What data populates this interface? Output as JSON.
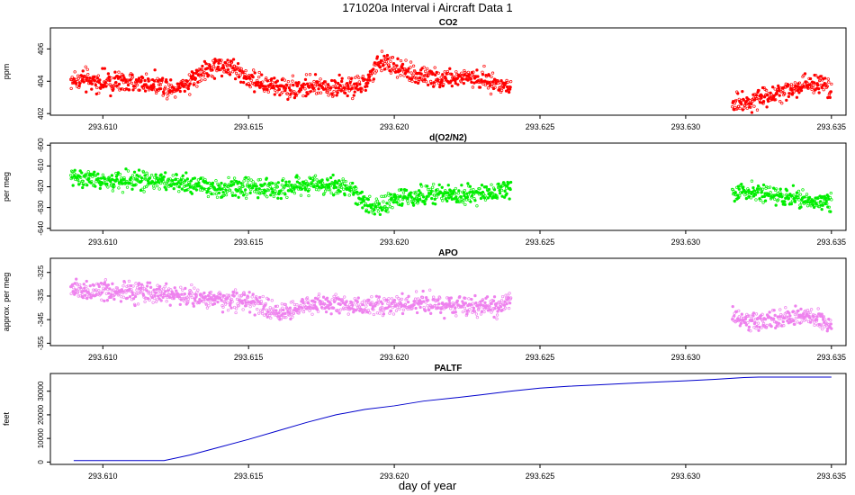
{
  "figure": {
    "title": "171020a   Interval i Aircraft Data 1",
    "xlabel": "day of year"
  },
  "chart_data": [
    {
      "type": "scatter",
      "title": "CO2",
      "ylabel": "ppm",
      "color": "#ff0000",
      "xlim": [
        293.6082,
        293.6355
      ],
      "ylim": [
        401.9,
        407.3
      ],
      "xticks": [
        293.61,
        293.615,
        293.62,
        293.625,
        293.63,
        293.635
      ],
      "xtick_labels": [
        "293.610",
        "293.615",
        "293.620",
        "293.625",
        "293.630",
        "293.635"
      ],
      "yticks": [
        402,
        404,
        406
      ],
      "ytick_labels": [
        "402",
        "404",
        "406"
      ],
      "trend": [
        [
          293.609,
          404.1
        ],
        [
          293.61,
          403.9
        ],
        [
          293.611,
          403.9
        ],
        [
          293.612,
          403.8
        ],
        [
          293.6125,
          403.6
        ],
        [
          293.613,
          404.0
        ],
        [
          293.6135,
          404.6
        ],
        [
          293.614,
          405.0
        ],
        [
          293.6145,
          404.8
        ],
        [
          293.615,
          404.2
        ],
        [
          293.6155,
          403.8
        ],
        [
          293.616,
          403.6
        ],
        [
          293.617,
          403.6
        ],
        [
          293.618,
          403.7
        ],
        [
          293.6185,
          403.5
        ],
        [
          293.619,
          403.8
        ],
        [
          293.6193,
          404.6
        ],
        [
          293.6196,
          405.3
        ],
        [
          293.62,
          404.9
        ],
        [
          293.6205,
          404.5
        ],
        [
          293.6215,
          404.2
        ],
        [
          293.6225,
          404.2
        ],
        [
          293.6235,
          403.9
        ],
        [
          293.624,
          403.7
        ],
        [
          293.6315,
          402.6
        ],
        [
          293.6322,
          402.8
        ],
        [
          293.633,
          403.2
        ],
        [
          293.634,
          403.6
        ],
        [
          293.6345,
          404.0
        ],
        [
          293.635,
          403.6
        ]
      ],
      "noise": 0.45,
      "segments": [
        [
          293.6089,
          293.624
        ],
        [
          293.6316,
          293.635
        ]
      ]
    },
    {
      "type": "scatter",
      "title": "d(O2/N2)",
      "ylabel": "per meg",
      "color": "#00ee00",
      "xlim": [
        293.6082,
        293.6355
      ],
      "ylim": [
        -641,
        -599
      ],
      "xticks": [
        293.61,
        293.615,
        293.62,
        293.625,
        293.63,
        293.635
      ],
      "xtick_labels": [
        "293.610",
        "293.615",
        "293.620",
        "293.625",
        "293.630",
        "293.635"
      ],
      "yticks": [
        -640,
        -630,
        -620,
        -610,
        -600
      ],
      "ytick_labels": [
        "-640",
        "-630",
        "-620",
        "-610",
        "-600"
      ],
      "trend": [
        [
          293.609,
          -615
        ],
        [
          293.61,
          -618
        ],
        [
          293.611,
          -617
        ],
        [
          293.612,
          -617
        ],
        [
          293.613,
          -619
        ],
        [
          293.614,
          -621
        ],
        [
          293.615,
          -620
        ],
        [
          293.616,
          -621
        ],
        [
          293.617,
          -619
        ],
        [
          293.618,
          -619
        ],
        [
          293.6185,
          -621
        ],
        [
          293.619,
          -628
        ],
        [
          293.6195,
          -630
        ],
        [
          293.62,
          -626
        ],
        [
          293.621,
          -624
        ],
        [
          293.622,
          -624
        ],
        [
          293.623,
          -624
        ],
        [
          293.624,
          -620
        ],
        [
          293.6315,
          -622
        ],
        [
          293.6325,
          -623
        ],
        [
          293.6335,
          -625
        ],
        [
          293.6345,
          -627
        ],
        [
          293.635,
          -628
        ]
      ],
      "noise": 3.2,
      "segments": [
        [
          293.6089,
          293.624
        ],
        [
          293.6316,
          293.635
        ]
      ]
    },
    {
      "type": "scatter",
      "title": "APO",
      "ylabel": "approx. per meg",
      "color": "#ee82ee",
      "xlim": [
        293.6082,
        293.6355
      ],
      "ylim": [
        -356,
        -319
      ],
      "xticks": [
        293.61,
        293.615,
        293.62,
        293.625,
        293.63,
        293.635
      ],
      "xtick_labels": [
        "293.610",
        "293.615",
        "293.620",
        "293.625",
        "293.630",
        "293.635"
      ],
      "yticks": [
        -355,
        -345,
        -335,
        -325
      ],
      "ytick_labels": [
        "-355",
        "-345",
        "-335",
        "-325"
      ],
      "trend": [
        [
          293.609,
          -332
        ],
        [
          293.61,
          -334
        ],
        [
          293.611,
          -333
        ],
        [
          293.612,
          -334
        ],
        [
          293.613,
          -335
        ],
        [
          293.614,
          -336
        ],
        [
          293.615,
          -337
        ],
        [
          293.6155,
          -340
        ],
        [
          293.616,
          -342
        ],
        [
          293.617,
          -339
        ],
        [
          293.618,
          -338
        ],
        [
          293.619,
          -340
        ],
        [
          293.62,
          -339
        ],
        [
          293.621,
          -338
        ],
        [
          293.622,
          -339
        ],
        [
          293.623,
          -340
        ],
        [
          293.624,
          -338
        ],
        [
          293.6315,
          -344
        ],
        [
          293.6325,
          -346
        ],
        [
          293.6335,
          -344
        ],
        [
          293.6345,
          -344
        ],
        [
          293.635,
          -347
        ]
      ],
      "noise": 3.0,
      "segments": [
        [
          293.6089,
          293.624
        ],
        [
          293.6316,
          293.635
        ]
      ]
    },
    {
      "type": "line",
      "title": "PALTF",
      "ylabel": "feet",
      "color": "#0000cc",
      "xlim": [
        293.6082,
        293.6355
      ],
      "ylim": [
        -1000,
        37500
      ],
      "xticks": [
        293.61,
        293.615,
        293.62,
        293.625,
        293.63,
        293.635
      ],
      "xtick_labels": [
        "293.610",
        "293.615",
        "293.620",
        "293.625",
        "293.630",
        "293.635"
      ],
      "yticks": [
        0,
        10000,
        20000,
        30000
      ],
      "ytick_labels": [
        "0",
        "10000",
        "20000",
        "30000"
      ],
      "x": [
        293.609,
        293.6121,
        293.613,
        293.614,
        293.615,
        293.616,
        293.617,
        293.618,
        293.619,
        293.62,
        293.621,
        293.622,
        293.623,
        293.624,
        293.625,
        293.626,
        293.627,
        293.628,
        293.629,
        293.63,
        293.631,
        293.632,
        293.6325,
        293.635
      ],
      "y": [
        600,
        600,
        3000,
        6300,
        9600,
        13200,
        16800,
        20000,
        22300,
        23800,
        25800,
        27100,
        28500,
        30000,
        31300,
        32100,
        32700,
        33300,
        33900,
        34400,
        35000,
        35800,
        36000,
        36000
      ]
    }
  ]
}
